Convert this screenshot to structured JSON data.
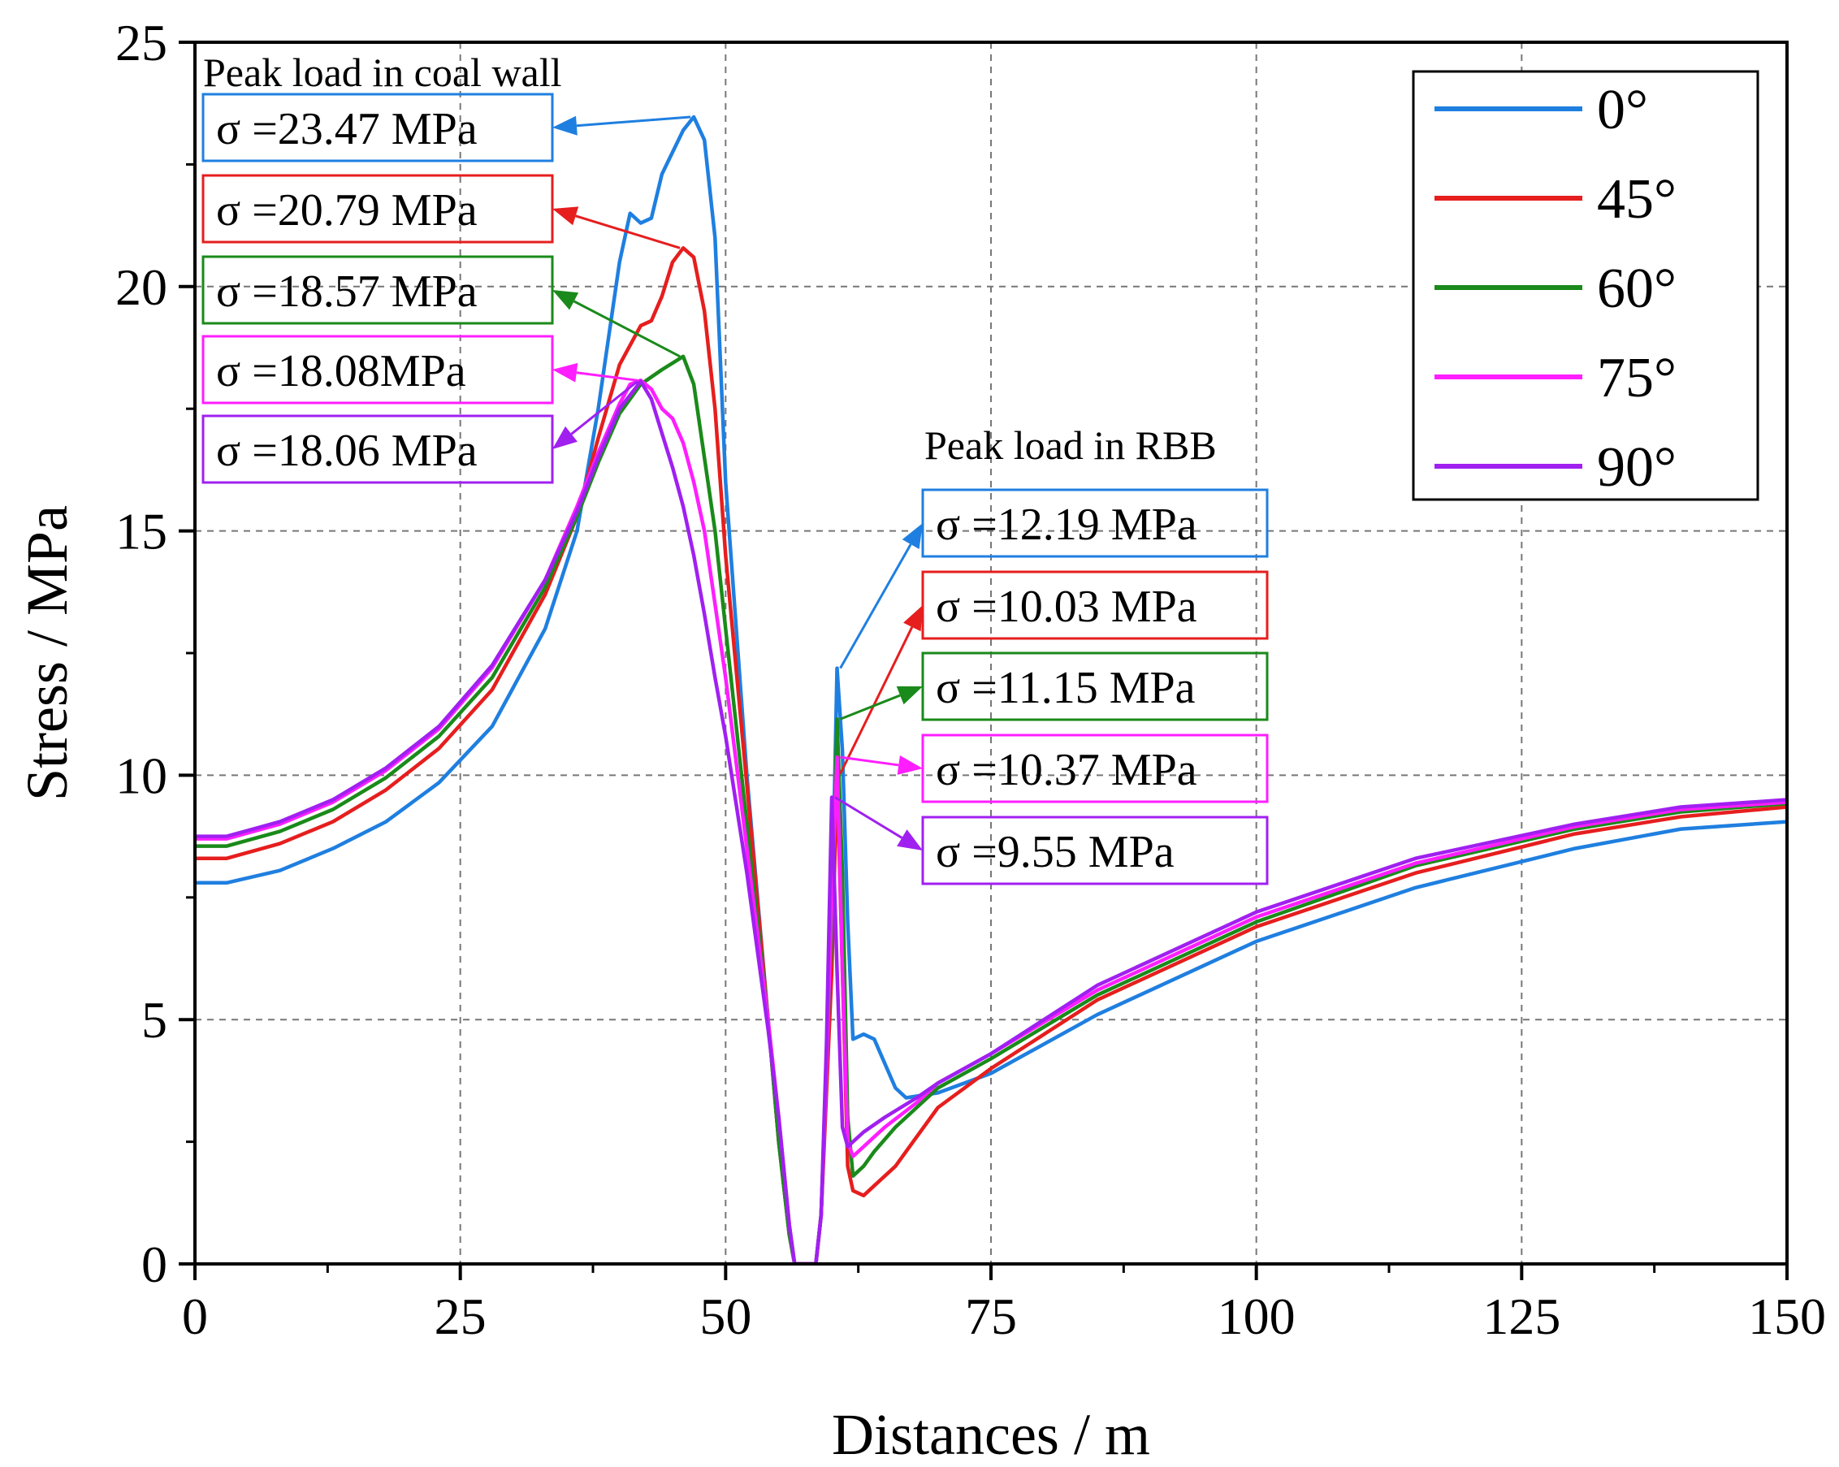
{
  "chart_data": {
    "type": "line",
    "title": "",
    "xlabel": "Distances / m",
    "ylabel": "Stress / MPa",
    "xlim": [
      0,
      150
    ],
    "ylim": [
      0,
      25
    ],
    "xticks": [
      0,
      25,
      50,
      75,
      100,
      125,
      150
    ],
    "yticks": [
      0,
      5,
      10,
      15,
      20,
      25
    ],
    "grid": true,
    "legend_position": "top-right",
    "series": [
      {
        "name": "0°",
        "color": "#1f7fe0",
        "x": [
          0,
          3,
          8,
          13,
          18,
          23,
          28,
          33,
          36,
          38,
          40,
          41,
          42,
          43,
          44,
          46,
          47,
          48,
          49,
          50,
          52,
          54,
          55,
          56,
          56.5,
          58.5,
          59,
          60,
          60.5,
          61,
          61.5,
          62,
          63,
          64,
          65,
          66,
          67,
          70,
          75,
          85,
          100,
          115,
          130,
          140,
          150
        ],
        "y": [
          7.8,
          7.8,
          8.05,
          8.5,
          9.05,
          9.85,
          11.0,
          13.0,
          15.0,
          17.5,
          20.5,
          21.5,
          21.3,
          21.4,
          22.3,
          23.2,
          23.47,
          23.0,
          21.0,
          16.0,
          10.0,
          5.0,
          2.5,
          0.6,
          0,
          0,
          1.0,
          7.0,
          12.19,
          10.5,
          7.0,
          4.6,
          4.7,
          4.6,
          4.1,
          3.6,
          3.4,
          3.5,
          3.9,
          5.1,
          6.6,
          7.7,
          8.5,
          8.9,
          9.05
        ]
      },
      {
        "name": "45°",
        "color": "#e61e1e",
        "x": [
          0,
          3,
          8,
          13,
          18,
          23,
          28,
          33,
          36,
          38,
          40,
          42,
          43,
          44,
          45,
          46,
          47,
          48,
          49,
          50,
          52,
          54,
          55,
          56,
          56.5,
          58.5,
          59,
          60,
          60.5,
          61,
          61.5,
          62,
          63,
          64,
          66,
          68,
          70,
          75,
          85,
          100,
          115,
          130,
          140,
          150
        ],
        "y": [
          8.3,
          8.3,
          8.6,
          9.05,
          9.7,
          10.55,
          11.75,
          13.7,
          15.3,
          16.9,
          18.4,
          19.2,
          19.3,
          19.8,
          20.5,
          20.79,
          20.6,
          19.5,
          17.5,
          14.5,
          9.8,
          5.0,
          2.5,
          0.6,
          0,
          0,
          1.0,
          6.0,
          10.03,
          6.0,
          2.0,
          1.5,
          1.4,
          1.6,
          2.0,
          2.6,
          3.2,
          4.0,
          5.4,
          6.9,
          8.0,
          8.8,
          9.15,
          9.35
        ]
      },
      {
        "name": "60°",
        "color": "#1a8a1a",
        "x": [
          0,
          3,
          8,
          13,
          18,
          23,
          28,
          33,
          36,
          38,
          40,
          42,
          44,
          46,
          47,
          48,
          49,
          50,
          52,
          54,
          55,
          56,
          56.5,
          58.5,
          59,
          60,
          60.5,
          61,
          61.5,
          62,
          63,
          64,
          66,
          68,
          70,
          75,
          85,
          100,
          115,
          130,
          140,
          150
        ],
        "y": [
          8.55,
          8.55,
          8.85,
          9.3,
          9.95,
          10.8,
          12.0,
          13.85,
          15.3,
          16.4,
          17.4,
          18.0,
          18.3,
          18.57,
          18.0,
          16.5,
          15.0,
          13.0,
          9.0,
          5.0,
          2.5,
          0.6,
          0,
          0,
          1.0,
          7.0,
          11.15,
          8.0,
          3.0,
          1.8,
          2.0,
          2.3,
          2.8,
          3.2,
          3.6,
          4.2,
          5.5,
          7.0,
          8.15,
          8.9,
          9.25,
          9.42
        ]
      },
      {
        "name": "75°",
        "color": "#ff1eff",
        "x": [
          0,
          3,
          8,
          13,
          18,
          23,
          28,
          33,
          36,
          38,
          40,
          41,
          42,
          43,
          44,
          45,
          46,
          47,
          48,
          49,
          50,
          52,
          54,
          55,
          56,
          56.5,
          58.5,
          59,
          59.5,
          60,
          60.5,
          61,
          61.5,
          62,
          63,
          65,
          68,
          70,
          75,
          85,
          100,
          115,
          130,
          140,
          150
        ],
        "y": [
          8.7,
          8.7,
          9.0,
          9.45,
          10.1,
          10.95,
          12.2,
          14.0,
          15.5,
          16.6,
          17.6,
          18.0,
          18.08,
          17.9,
          17.5,
          17.3,
          16.8,
          16.0,
          15.0,
          13.5,
          12.0,
          8.5,
          5.0,
          3.0,
          0.8,
          0,
          0,
          1.0,
          4.0,
          7.5,
          10.37,
          6.0,
          2.5,
          2.2,
          2.4,
          2.8,
          3.3,
          3.7,
          4.3,
          5.6,
          7.1,
          8.2,
          8.95,
          9.3,
          9.45
        ]
      },
      {
        "name": "90°",
        "color": "#a020f0",
        "x": [
          0,
          3,
          8,
          13,
          18,
          23,
          28,
          33,
          36,
          38,
          40,
          42,
          43,
          44,
          45,
          46,
          47,
          48,
          49,
          50,
          52,
          54,
          55,
          56,
          56.5,
          58.5,
          59,
          59.5,
          60,
          60.5,
          61,
          61.5,
          62,
          63,
          65,
          68,
          70,
          75,
          85,
          100,
          115,
          130,
          140,
          150
        ],
        "y": [
          8.75,
          8.75,
          9.05,
          9.5,
          10.15,
          11.0,
          12.25,
          14.0,
          15.4,
          16.5,
          17.5,
          18.06,
          17.7,
          17.0,
          16.3,
          15.5,
          14.5,
          13.3,
          12.0,
          10.8,
          8.0,
          4.8,
          3.0,
          0.8,
          0,
          0,
          1.0,
          4.5,
          9.55,
          6.0,
          2.8,
          2.4,
          2.5,
          2.7,
          3.0,
          3.4,
          3.7,
          4.3,
          5.7,
          7.2,
          8.3,
          9.0,
          9.35,
          9.5
        ]
      }
    ],
    "annotations": [
      {
        "title": "Peak load in coal wall",
        "labels": [
          {
            "text": "σ =23.47 MPa",
            "color": "#1f7fe0",
            "x": 47,
            "y": 23.47
          },
          {
            "text": "σ =20.79 MPa",
            "color": "#e61e1e",
            "x": 46,
            "y": 20.79
          },
          {
            "text": "σ =18.57 MPa",
            "color": "#1a8a1a",
            "x": 46,
            "y": 18.57
          },
          {
            "text": "σ =18.08MPa",
            "color": "#ff1eff",
            "x": 42,
            "y": 18.08
          },
          {
            "text": "σ =18.06 MPa",
            "color": "#a020f0",
            "x": 42,
            "y": 18.06
          }
        ]
      },
      {
        "title": "Peak load in RBB",
        "labels": [
          {
            "text": "σ =12.19 MPa",
            "color": "#1f7fe0",
            "x": 60.5,
            "y": 12.19
          },
          {
            "text": "σ =10.03 MPa",
            "color": "#e61e1e",
            "x": 60.5,
            "y": 10.03
          },
          {
            "text": "σ =11.15 MPa",
            "color": "#1a8a1a",
            "x": 60.5,
            "y": 11.15
          },
          {
            "text": "σ =10.37 MPa",
            "color": "#ff1eff",
            "x": 60.5,
            "y": 10.37
          },
          {
            "text": "σ =9.55 MPa",
            "color": "#a020f0",
            "x": 60,
            "y": 9.55
          }
        ]
      }
    ]
  }
}
